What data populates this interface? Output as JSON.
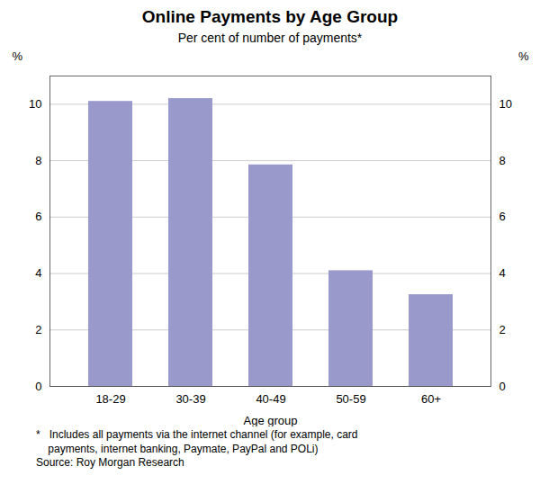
{
  "chart_data": {
    "type": "bar",
    "title": "Online Payments by Age Group",
    "subtitle": "Per cent of number of payments*",
    "categories": [
      "18-29",
      "30-39",
      "40-49",
      "50-59",
      "60+"
    ],
    "values": [
      10.1,
      10.2,
      7.85,
      4.1,
      3.25
    ],
    "color": "#9999cc",
    "xlabel": "Age group",
    "ylabel": "%",
    "ylim": [
      0,
      11
    ],
    "yticks": [
      0,
      2,
      4,
      6,
      8,
      10
    ],
    "y2label": "%",
    "y2lim": [
      0,
      11
    ],
    "y2ticks": [
      0,
      2,
      4,
      6,
      8,
      10
    ],
    "grid": true,
    "footnotes": [
      "*   Includes all payments via the internet channel (for example, card",
      "    payments, internet banking, Paymate, PayPal and POLi)"
    ],
    "source": "Source: Roy Morgan Research"
  }
}
